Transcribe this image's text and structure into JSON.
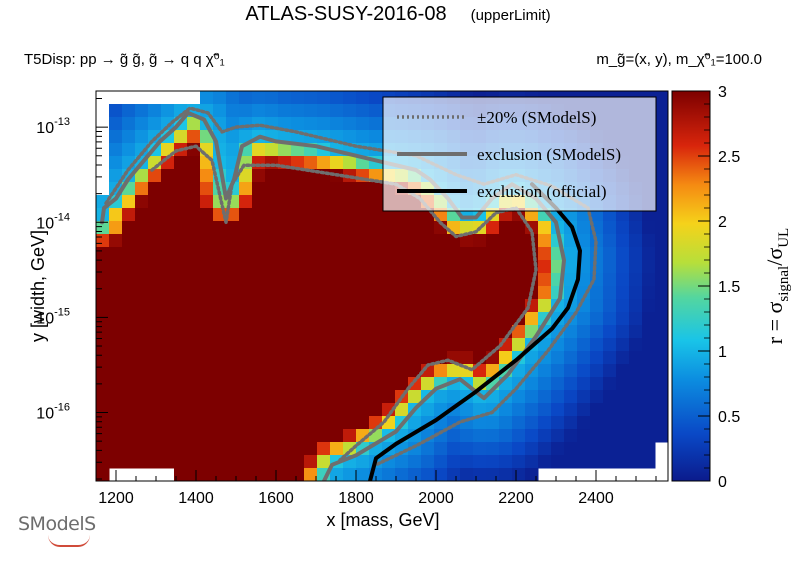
{
  "page": {
    "title": "ATLAS-SUSY-2016-08",
    "title_note": "(upperLimit)",
    "process": "T5Disp: pp → g̃ g̃, g̃ → q q χ̃⁰₁",
    "mass_info": "m_g̃=(x, y), m_χ̃⁰₁=100.0",
    "logo_text": "SModelS"
  },
  "chart_data": {
    "type": "heatmap",
    "xlabel": "x [mass, GeV]",
    "ylabel": "y [width, GeV]",
    "zlabel": "r = σ_signal/σ_UL",
    "xlim": [
      1150,
      2580
    ],
    "ylim_log10": [
      -16.72,
      -12.62
    ],
    "y_scale": "log",
    "zlim": [
      0,
      3
    ],
    "x_ticks": [
      1200,
      1400,
      1600,
      1800,
      2000,
      2200,
      2400
    ],
    "y_ticks": [
      {
        "exp": -13,
        "label": "10",
        "sup": "-13"
      },
      {
        "exp": -14,
        "label": "10",
        "sup": "-14"
      },
      {
        "exp": -15,
        "label": "10",
        "sup": "-15"
      },
      {
        "exp": -16,
        "label": "10",
        "sup": "-16"
      }
    ],
    "z_ticks": [
      "0",
      "0.5",
      "1",
      "1.5",
      "2",
      "2.5",
      "3"
    ],
    "legend_position": "top-right",
    "legend": [
      {
        "label": "±20% (SModelS)",
        "style": "dotted",
        "color": "#6e6e6e"
      },
      {
        "label": "exclusion (SModelS)",
        "style": "solid",
        "color": "#6e6e6e"
      },
      {
        "label": "exclusion (official)",
        "style": "solid",
        "color": "#000000"
      }
    ],
    "contours": {
      "official": [
        [
          1835,
          -16.72
        ],
        [
          1850,
          -16.48
        ],
        [
          1900,
          -16.33
        ],
        [
          2000,
          -16.08
        ],
        [
          2100,
          -15.78
        ],
        [
          2200,
          -15.45
        ],
        [
          2290,
          -15.12
        ],
        [
          2330,
          -14.9
        ],
        [
          2355,
          -14.6
        ],
        [
          2360,
          -14.3
        ],
        [
          2340,
          -14.05
        ],
        [
          2300,
          -13.85
        ],
        [
          2240,
          -13.6
        ]
      ],
      "smodels": [
        [
          1165,
          -14.0
        ],
        [
          1170,
          -13.85
        ],
        [
          1200,
          -13.75
        ],
        [
          1230,
          -13.55
        ],
        [
          1280,
          -13.3
        ],
        [
          1310,
          -13.15
        ],
        [
          1350,
          -13.0
        ],
        [
          1380,
          -12.85
        ],
        [
          1420,
          -12.92
        ],
        [
          1450,
          -13.15
        ],
        [
          1475,
          -13.75
        ],
        [
          1495,
          -13.55
        ],
        [
          1515,
          -13.2
        ],
        [
          1560,
          -13.1
        ],
        [
          1600,
          -13.15
        ],
        [
          1700,
          -13.2
        ],
        [
          1800,
          -13.3
        ],
        [
          1900,
          -13.4
        ],
        [
          1950,
          -13.45
        ],
        [
          1985,
          -13.55
        ],
        [
          2030,
          -13.75
        ],
        [
          2065,
          -13.95
        ],
        [
          2100,
          -13.95
        ],
        [
          2140,
          -13.75
        ],
        [
          2190,
          -13.6
        ],
        [
          2250,
          -13.75
        ],
        [
          2300,
          -14.0
        ],
        [
          2320,
          -14.4
        ],
        [
          2310,
          -14.8
        ],
        [
          2250,
          -15.2
        ],
        [
          2180,
          -15.6
        ],
        [
          2120,
          -15.85
        ],
        [
          2060,
          -15.65
        ],
        [
          2000,
          -15.75
        ],
        [
          1950,
          -15.95
        ],
        [
          1900,
          -16.2
        ],
        [
          1800,
          -16.45
        ],
        [
          1740,
          -16.55
        ],
        [
          1720,
          -16.72
        ]
      ],
      "plus20": [
        [
          1175,
          -13.8
        ],
        [
          1230,
          -13.45
        ],
        [
          1290,
          -13.15
        ],
        [
          1340,
          -12.95
        ],
        [
          1385,
          -12.8
        ],
        [
          1430,
          -12.85
        ],
        [
          1465,
          -13.05
        ],
        [
          1500,
          -13.0
        ],
        [
          1560,
          -12.98
        ],
        [
          1650,
          -13.05
        ],
        [
          1800,
          -13.2
        ],
        [
          1950,
          -13.3
        ],
        [
          2050,
          -13.5
        ],
        [
          2120,
          -13.6
        ],
        [
          2200,
          -13.5
        ],
        [
          2290,
          -13.62
        ],
        [
          2380,
          -13.85
        ],
        [
          2400,
          -14.2
        ],
        [
          2395,
          -14.6
        ],
        [
          2350,
          -14.95
        ],
        [
          2280,
          -15.35
        ],
        [
          2200,
          -15.75
        ],
        [
          2140,
          -16.0
        ],
        [
          2060,
          -16.1
        ],
        [
          1950,
          -16.35
        ],
        [
          1850,
          -16.55
        ]
      ],
      "minus20": [
        [
          1290,
          -13.45
        ],
        [
          1350,
          -13.25
        ],
        [
          1400,
          -13.2
        ],
        [
          1440,
          -13.35
        ],
        [
          1475,
          -14.0
        ],
        [
          1490,
          -13.6
        ],
        [
          1520,
          -13.4
        ],
        [
          1600,
          -13.4
        ],
        [
          1750,
          -13.5
        ],
        [
          1900,
          -13.6
        ],
        [
          1960,
          -13.75
        ],
        [
          2010,
          -14.0
        ],
        [
          2050,
          -14.15
        ],
        [
          2100,
          -14.1
        ],
        [
          2150,
          -13.9
        ],
        [
          2200,
          -13.85
        ],
        [
          2240,
          -14.1
        ],
        [
          2250,
          -14.5
        ],
        [
          2230,
          -14.9
        ],
        [
          2160,
          -15.3
        ],
        [
          2090,
          -15.55
        ],
        [
          2030,
          -15.45
        ],
        [
          1980,
          -15.5
        ],
        [
          1930,
          -15.75
        ],
        [
          1870,
          -16.1
        ],
        [
          1800,
          -16.35
        ],
        [
          1760,
          -16.5
        ]
      ]
    }
  }
}
